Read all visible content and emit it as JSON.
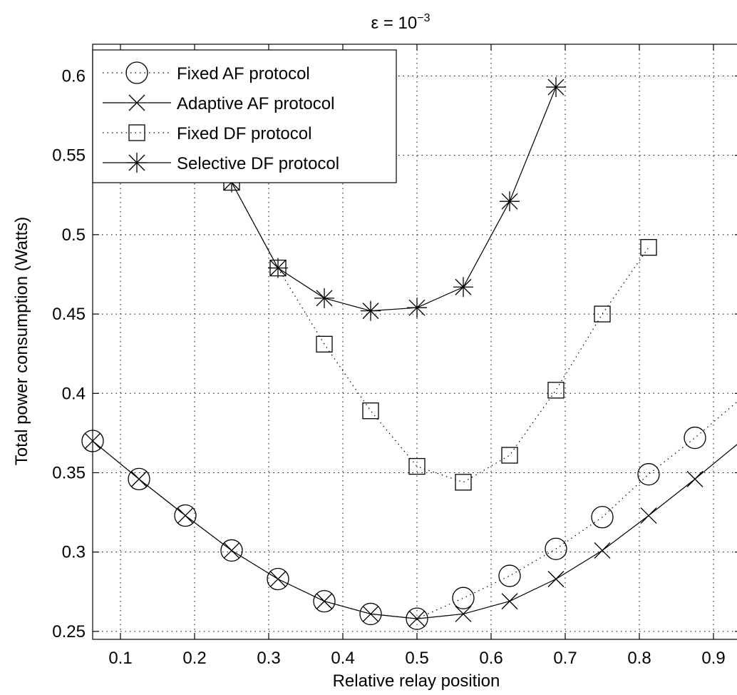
{
  "chart_data": {
    "type": "line",
    "title": "ε = 10",
    "title_exponent": "−3",
    "xlabel": "Relative relay position",
    "ylabel": "Total power consumption (Watts)",
    "xlim": [
      0.0625,
      0.9375
    ],
    "ylim": [
      0.245,
      0.62
    ],
    "xticks": [
      0.1,
      0.2,
      0.3,
      0.4,
      0.5,
      0.6,
      0.7,
      0.8,
      0.9
    ],
    "xtick_labels": [
      "0.1",
      "0.2",
      "0.3",
      "0.4",
      "0.5",
      "0.6",
      "0.7",
      "0.8",
      "0.9"
    ],
    "yticks": [
      0.25,
      0.3,
      0.35,
      0.4,
      0.45,
      0.5,
      0.55,
      0.6
    ],
    "ytick_labels": [
      "0.25",
      "0.3",
      "0.35",
      "0.4",
      "0.45",
      "0.5",
      "0.55",
      "0.6"
    ],
    "grid": true,
    "legend_position": "top-left",
    "series": [
      {
        "name": "Fixed AF protocol",
        "line": "dotted",
        "marker": "circle",
        "x": [
          0.0625,
          0.125,
          0.1875,
          0.25,
          0.3125,
          0.375,
          0.4375,
          0.5,
          0.5625,
          0.625,
          0.6875,
          0.75,
          0.8125,
          0.875
        ],
        "y": [
          0.37,
          0.346,
          0.323,
          0.301,
          0.283,
          0.269,
          0.261,
          0.258,
          0.271,
          0.285,
          0.302,
          0.322,
          0.349,
          0.372
        ],
        "line_extends_to": [
          0.9375,
          0.397
        ]
      },
      {
        "name": "Adaptive AF protocol",
        "line": "solid",
        "marker": "x",
        "x": [
          0.0625,
          0.125,
          0.1875,
          0.25,
          0.3125,
          0.375,
          0.4375,
          0.5,
          0.5625,
          0.625,
          0.6875,
          0.75,
          0.8125,
          0.875
        ],
        "y": [
          0.37,
          0.346,
          0.323,
          0.301,
          0.283,
          0.269,
          0.261,
          0.258,
          0.261,
          0.269,
          0.283,
          0.301,
          0.323,
          0.346
        ],
        "line_extends_to": [
          0.9375,
          0.37
        ]
      },
      {
        "name": "Fixed DF protocol",
        "line": "dotted",
        "marker": "square",
        "x": [
          0.25,
          0.3125,
          0.375,
          0.4375,
          0.5,
          0.5625,
          0.625,
          0.6875,
          0.75,
          0.8125
        ],
        "y": [
          0.533,
          0.479,
          0.431,
          0.389,
          0.354,
          0.344,
          0.361,
          0.402,
          0.45,
          0.492
        ]
      },
      {
        "name": "Selective DF protocol",
        "line": "solid",
        "marker": "asterisk",
        "x": [
          0.25,
          0.3125,
          0.375,
          0.4375,
          0.5,
          0.5625,
          0.625,
          0.6875
        ],
        "y": [
          0.533,
          0.479,
          0.46,
          0.452,
          0.454,
          0.467,
          0.521,
          0.593
        ]
      }
    ]
  }
}
